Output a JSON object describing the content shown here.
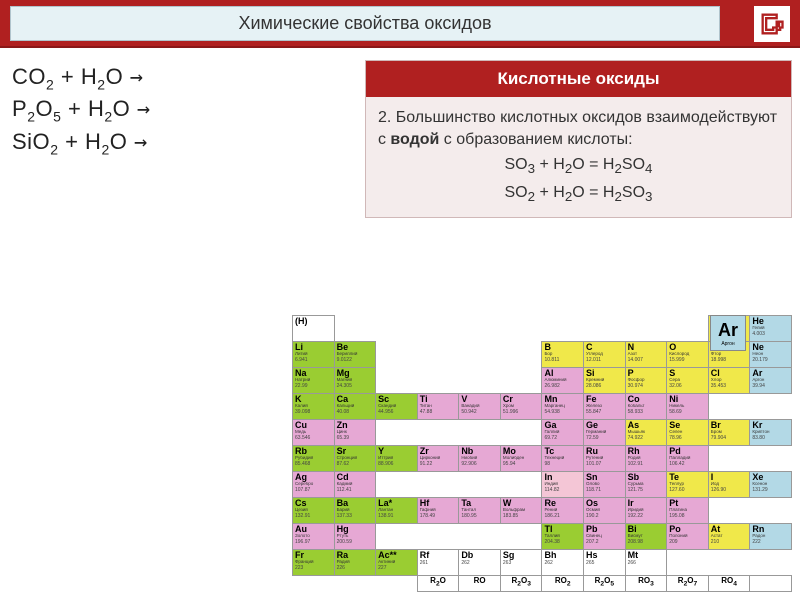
{
  "header": {
    "title": "Химические свойства оксидов"
  },
  "equations": [
    "CO₂ + H₂O →",
    "P₂O₅ + H₂O →",
    "SiO₂ + H₂O →"
  ],
  "infobox": {
    "header": "Кислотные оксиды",
    "text_prefix": "2. Большинство кислотных оксидов взаимодействуют с ",
    "text_bold": "водой",
    "text_suffix": " с образованием кислоты:",
    "eq1": "SO₃ + H₂O = H₂SO₄",
    "eq2": "SO₂ + H₂O = H₂SO₃"
  },
  "legend": {
    "element_sym": "Ar",
    "element_name": "Аргон",
    "element_mass": "39.94"
  },
  "periodic": {
    "rows": [
      [
        {
          "s": "(H)",
          "c": "w"
        },
        null,
        null,
        null,
        null,
        null,
        null,
        null,
        null,
        null,
        {
          "s": "H",
          "n": "Водород",
          "m": "1.00794",
          "c": "y"
        },
        {
          "s": "He",
          "n": "Гелий",
          "m": "4.003",
          "c": "b"
        }
      ],
      [
        {
          "s": "Li",
          "n": "Литий",
          "m": "6.941",
          "c": "g"
        },
        {
          "s": "Be",
          "n": "Бериллий",
          "m": "9.0122",
          "c": "g"
        },
        null,
        null,
        null,
        null,
        {
          "s": "B",
          "n": "Бор",
          "m": "10.811",
          "c": "y"
        },
        {
          "s": "C",
          "n": "Углерод",
          "m": "12.011",
          "c": "y"
        },
        {
          "s": "N",
          "n": "Азот",
          "m": "14.007",
          "c": "y"
        },
        {
          "s": "O",
          "n": "Кислород",
          "m": "15.999",
          "c": "y"
        },
        {
          "s": "F",
          "n": "Фтор",
          "m": "18.998",
          "c": "y"
        },
        {
          "s": "Ne",
          "n": "Неон",
          "m": "20.179",
          "c": "b"
        }
      ],
      [
        {
          "s": "Na",
          "n": "Натрий",
          "m": "22.99",
          "c": "g"
        },
        {
          "s": "Mg",
          "n": "Магний",
          "m": "24.305",
          "c": "g"
        },
        null,
        null,
        null,
        null,
        {
          "s": "Al",
          "n": "Алюминий",
          "m": "26.982",
          "c": "p"
        },
        {
          "s": "Si",
          "n": "Кремний",
          "m": "28.086",
          "c": "y"
        },
        {
          "s": "P",
          "n": "Фосфор",
          "m": "30.974",
          "c": "y"
        },
        {
          "s": "S",
          "n": "Сера",
          "m": "32.06",
          "c": "y"
        },
        {
          "s": "Cl",
          "n": "Хлор",
          "m": "35.453",
          "c": "y"
        },
        {
          "s": "Ar",
          "n": "Аргон",
          "m": "39.94",
          "c": "b"
        }
      ],
      [
        {
          "s": "K",
          "n": "Калий",
          "m": "39.098",
          "c": "g"
        },
        {
          "s": "Ca",
          "n": "Кальций",
          "m": "40.08",
          "c": "g"
        },
        {
          "s": "Sc",
          "n": "Скандий",
          "m": "44.956",
          "c": "g"
        },
        {
          "s": "Ti",
          "n": "Титан",
          "m": "47.88",
          "c": "p"
        },
        {
          "s": "V",
          "n": "Ванадий",
          "m": "50.942",
          "c": "p"
        },
        {
          "s": "Cr",
          "n": "Хром",
          "m": "51.996",
          "c": "p"
        },
        {
          "s": "Mn",
          "n": "Марганец",
          "m": "54.938",
          "c": "p"
        },
        {
          "s": "Fe",
          "n": "Железо",
          "m": "55.847",
          "c": "p"
        },
        {
          "s": "Co",
          "n": "Кобальт",
          "m": "58.933",
          "c": "p"
        },
        {
          "s": "Ni",
          "n": "Никель",
          "m": "58.69",
          "c": "p"
        },
        null,
        null
      ],
      [
        {
          "s": "Cu",
          "n": "Медь",
          "m": "63.546",
          "c": "p"
        },
        {
          "s": "Zn",
          "n": "Цинк",
          "m": "65.39",
          "c": "p"
        },
        null,
        null,
        null,
        null,
        {
          "s": "Ga",
          "n": "Галлий",
          "m": "69.72",
          "c": "p"
        },
        {
          "s": "Ge",
          "n": "Германий",
          "m": "72.59",
          "c": "p"
        },
        {
          "s": "As",
          "n": "Мышьяк",
          "m": "74.922",
          "c": "y"
        },
        {
          "s": "Se",
          "n": "Селен",
          "m": "78.96",
          "c": "y"
        },
        {
          "s": "Br",
          "n": "Бром",
          "m": "79.904",
          "c": "y"
        },
        {
          "s": "Kr",
          "n": "Криптон",
          "m": "83.80",
          "c": "b"
        }
      ],
      [
        {
          "s": "Rb",
          "n": "Рубидий",
          "m": "85.468",
          "c": "g"
        },
        {
          "s": "Sr",
          "n": "Стронций",
          "m": "87.62",
          "c": "g"
        },
        {
          "s": "Y",
          "n": "Иттрий",
          "m": "88.906",
          "c": "g"
        },
        {
          "s": "Zr",
          "n": "Цирконий",
          "m": "91.22",
          "c": "p"
        },
        {
          "s": "Nb",
          "n": "Ниобий",
          "m": "92.906",
          "c": "p"
        },
        {
          "s": "Mo",
          "n": "Молибден",
          "m": "95.94",
          "c": "p"
        },
        {
          "s": "Tc",
          "n": "Технеций",
          "m": "98",
          "c": "p"
        },
        {
          "s": "Ru",
          "n": "Рутений",
          "m": "101.07",
          "c": "p"
        },
        {
          "s": "Rh",
          "n": "Родий",
          "m": "102.91",
          "c": "p"
        },
        {
          "s": "Pd",
          "n": "Палладий",
          "m": "106.42",
          "c": "p"
        },
        null,
        null
      ],
      [
        {
          "s": "Ag",
          "n": "Серебро",
          "m": "107.87",
          "c": "p"
        },
        {
          "s": "Cd",
          "n": "Кадмий",
          "m": "112.41",
          "c": "p"
        },
        null,
        null,
        null,
        null,
        {
          "s": "In",
          "n": "Индий",
          "m": "114.82",
          "c": "pk"
        },
        {
          "s": "Sn",
          "n": "Олово",
          "m": "118.71",
          "c": "p"
        },
        {
          "s": "Sb",
          "n": "Сурьма",
          "m": "121.75",
          "c": "p"
        },
        {
          "s": "Te",
          "n": "Теллур",
          "m": "127.60",
          "c": "y"
        },
        {
          "s": "I",
          "n": "Иод",
          "m": "126.90",
          "c": "y"
        },
        {
          "s": "Xe",
          "n": "Ксенон",
          "m": "131.29",
          "c": "b"
        }
      ],
      [
        {
          "s": "Cs",
          "n": "Цезий",
          "m": "132.91",
          "c": "g"
        },
        {
          "s": "Ba",
          "n": "Барий",
          "m": "137.33",
          "c": "g"
        },
        {
          "s": "La*",
          "n": "Лантан",
          "m": "138.91",
          "c": "g"
        },
        {
          "s": "Hf",
          "n": "Гафний",
          "m": "178.49",
          "c": "p"
        },
        {
          "s": "Ta",
          "n": "Тантал",
          "m": "180.95",
          "c": "p"
        },
        {
          "s": "W",
          "n": "Вольфрам",
          "m": "183.85",
          "c": "p"
        },
        {
          "s": "Re",
          "n": "Рений",
          "m": "186.21",
          "c": "p"
        },
        {
          "s": "Os",
          "n": "Осмий",
          "m": "190.2",
          "c": "p"
        },
        {
          "s": "Ir",
          "n": "Иридий",
          "m": "192.22",
          "c": "p"
        },
        {
          "s": "Pt",
          "n": "Платина",
          "m": "195.08",
          "c": "p"
        },
        null,
        null
      ],
      [
        {
          "s": "Au",
          "n": "Золото",
          "m": "196.97",
          "c": "p"
        },
        {
          "s": "Hg",
          "n": "Ртуть",
          "m": "200.59",
          "c": "p"
        },
        null,
        null,
        null,
        null,
        {
          "s": "Tl",
          "n": "Таллий",
          "m": "204.38",
          "c": "g"
        },
        {
          "s": "Pb",
          "n": "Свинец",
          "m": "207.2",
          "c": "p"
        },
        {
          "s": "Bi",
          "n": "Висмут",
          "m": "208.98",
          "c": "g"
        },
        {
          "s": "Po",
          "n": "Полоний",
          "m": "209",
          "c": "p"
        },
        {
          "s": "At",
          "n": "Астат",
          "m": "210",
          "c": "y"
        },
        {
          "s": "Rn",
          "n": "Радон",
          "m": "222",
          "c": "b"
        }
      ],
      [
        {
          "s": "Fr",
          "n": "Франций",
          "m": "223",
          "c": "g"
        },
        {
          "s": "Ra",
          "n": "Радий",
          "m": "226",
          "c": "g"
        },
        {
          "s": "Ac**",
          "n": "Актиний",
          "m": "227",
          "c": "g"
        },
        {
          "s": "Rf",
          "n": "",
          "m": "261",
          "c": "w"
        },
        {
          "s": "Db",
          "n": "",
          "m": "262",
          "c": "w"
        },
        {
          "s": "Sg",
          "n": "",
          "m": "263",
          "c": "w"
        },
        {
          "s": "Bh",
          "n": "",
          "m": "262",
          "c": "w"
        },
        {
          "s": "Hs",
          "n": "",
          "m": "265",
          "c": "w"
        },
        {
          "s": "Mt",
          "n": "",
          "m": "266",
          "c": "w"
        },
        null,
        null,
        null
      ]
    ],
    "oxide_row": [
      "R₂O",
      "RO",
      "R₂O₃",
      "RO₂",
      "R₂O₅",
      "RO₃",
      "R₂O₇",
      "RO₄",
      ""
    ]
  }
}
